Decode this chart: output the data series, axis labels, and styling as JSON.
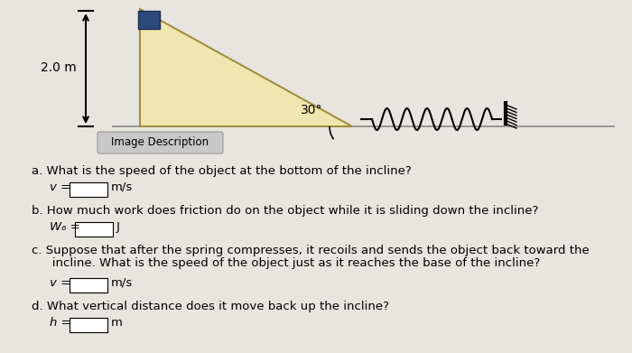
{
  "bg_color": "#d4d0cb",
  "diagram_bg": "#e8e4df",
  "triangle_fill": "#f0e6b0",
  "triangle_edge": "#a09040",
  "block_color": "#2c4a7c",
  "height_label": "2.0 m",
  "angle_label": "30°",
  "image_desc_label": "Image Description",
  "qa_a_q": "a. What is the speed of the object at the bottom of the incline?",
  "qa_a_ans": "v =",
  "qa_a_unit": "m/s",
  "qa_b_q": "b. How much work does friction do on the object while it is sliding down the incline?",
  "qa_b_ans": "W₆ =",
  "qa_b_unit": "J",
  "qa_c_q1": "c. Suppose that after the spring compresses, it recoils and sends the object back toward the",
  "qa_c_q2": "   incline. What is the speed of the object just as it reaches the base of the incline?",
  "qa_c_ans": "v =",
  "qa_c_unit": "m/s",
  "qa_d_q": "d. What vertical distance does it move back up the incline?",
  "qa_d_ans": "h =",
  "qa_d_unit": "m",
  "fig_width": 7.0,
  "fig_height": 3.91,
  "dpi": 100
}
